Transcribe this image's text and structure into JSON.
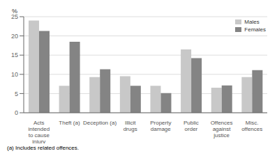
{
  "chart_data": {
    "type": "bar",
    "categories": [
      "Acts\nintended\nto cause\ninjury",
      "Theft (a)",
      "Deception (a)",
      "Illicit\ndrugs",
      "Property\ndamage",
      "Public\norder",
      "Offences\nagainst\njustice",
      "Misc.\noffences"
    ],
    "series": [
      {
        "name": "Males",
        "color": "#c8c8c8",
        "values": [
          24,
          7,
          9.3,
          9.5,
          7.0,
          16.5,
          6.5,
          9.3
        ]
      },
      {
        "name": "Females",
        "color": "#848484",
        "values": [
          21.3,
          18.5,
          11.3,
          7.0,
          5.1,
          14.2,
          7.1,
          11.1
        ]
      }
    ],
    "ylabel": "%",
    "ylim": [
      0,
      25
    ],
    "yticks": [
      0,
      5,
      10,
      15,
      20,
      25
    ],
    "grid": true,
    "legend": "upper right",
    "footnote": "(a) Includes related offences."
  }
}
